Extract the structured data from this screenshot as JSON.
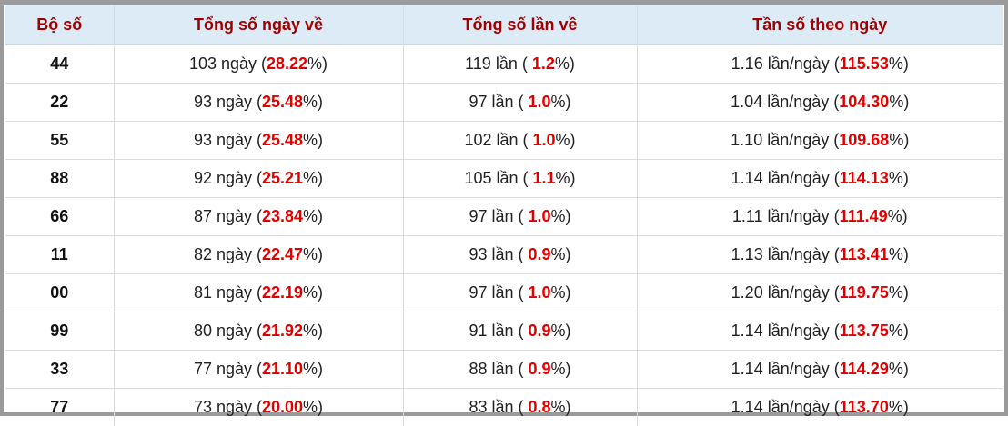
{
  "table": {
    "header": [
      "Bộ số",
      "Tổng số ngày về",
      "Tổng số lần về",
      "Tần số theo ngày"
    ],
    "rows": [
      {
        "number": "44",
        "cells": [
          {
            "text": "103 ngày (",
            "highlight": "28.22",
            "suffix": "%)"
          },
          {
            "text": "119 lần ( ",
            "highlight": "1.2",
            "suffix": "%)"
          },
          {
            "text": "1.16 lần/ngày (",
            "highlight": "115.53",
            "suffix": "%)"
          }
        ]
      },
      {
        "number": "22",
        "cells": [
          {
            "text": "93 ngày (",
            "highlight": "25.48",
            "suffix": "%)"
          },
          {
            "text": "97 lần ( ",
            "highlight": "1.0",
            "suffix": "%)"
          },
          {
            "text": "1.04 lần/ngày (",
            "highlight": "104.30",
            "suffix": "%)"
          }
        ]
      },
      {
        "number": "55",
        "cells": [
          {
            "text": "93 ngày (",
            "highlight": "25.48",
            "suffix": "%)"
          },
          {
            "text": "102 lần ( ",
            "highlight": "1.0",
            "suffix": "%)"
          },
          {
            "text": "1.10 lần/ngày (",
            "highlight": "109.68",
            "suffix": "%)"
          }
        ]
      },
      {
        "number": "88",
        "cells": [
          {
            "text": "92 ngày (",
            "highlight": "25.21",
            "suffix": "%)"
          },
          {
            "text": "105 lần ( ",
            "highlight": "1.1",
            "suffix": "%)"
          },
          {
            "text": "1.14 lần/ngày (",
            "highlight": "114.13",
            "suffix": "%)"
          }
        ]
      },
      {
        "number": "66",
        "cells": [
          {
            "text": "87 ngày (",
            "highlight": "23.84",
            "suffix": "%)"
          },
          {
            "text": "97 lần ( ",
            "highlight": "1.0",
            "suffix": "%)"
          },
          {
            "text": "1.11 lần/ngày (",
            "highlight": "111.49",
            "suffix": "%)"
          }
        ]
      },
      {
        "number": "11",
        "cells": [
          {
            "text": "82 ngày (",
            "highlight": "22.47",
            "suffix": "%)"
          },
          {
            "text": "93 lần ( ",
            "highlight": "0.9",
            "suffix": "%)"
          },
          {
            "text": "1.13 lần/ngày (",
            "highlight": "113.41",
            "suffix": "%)"
          }
        ]
      },
      {
        "number": "00",
        "cells": [
          {
            "text": "81 ngày (",
            "highlight": "22.19",
            "suffix": "%)"
          },
          {
            "text": "97 lần ( ",
            "highlight": "1.0",
            "suffix": "%)"
          },
          {
            "text": "1.20 lần/ngày (",
            "highlight": "119.75",
            "suffix": "%)"
          }
        ]
      },
      {
        "number": "99",
        "cells": [
          {
            "text": "80 ngày (",
            "highlight": "21.92",
            "suffix": "%)"
          },
          {
            "text": "91 lần ( ",
            "highlight": "0.9",
            "suffix": "%)"
          },
          {
            "text": "1.14 lần/ngày (",
            "highlight": "113.75",
            "suffix": "%)"
          }
        ]
      },
      {
        "number": "33",
        "cells": [
          {
            "text": "77 ngày (",
            "highlight": "21.10",
            "suffix": "%)"
          },
          {
            "text": "88 lần ( ",
            "highlight": "0.9",
            "suffix": "%)"
          },
          {
            "text": "1.14 lần/ngày (",
            "highlight": "114.29",
            "suffix": "%)"
          }
        ]
      },
      {
        "number": "77",
        "cells": [
          {
            "text": "73 ngày (",
            "highlight": "20.00",
            "suffix": "%)"
          },
          {
            "text": "83 lần ( ",
            "highlight": "0.8",
            "suffix": "%)"
          },
          {
            "text": "1.14 lần/ngày (",
            "highlight": "113.70",
            "suffix": "%)"
          }
        ]
      }
    ]
  }
}
